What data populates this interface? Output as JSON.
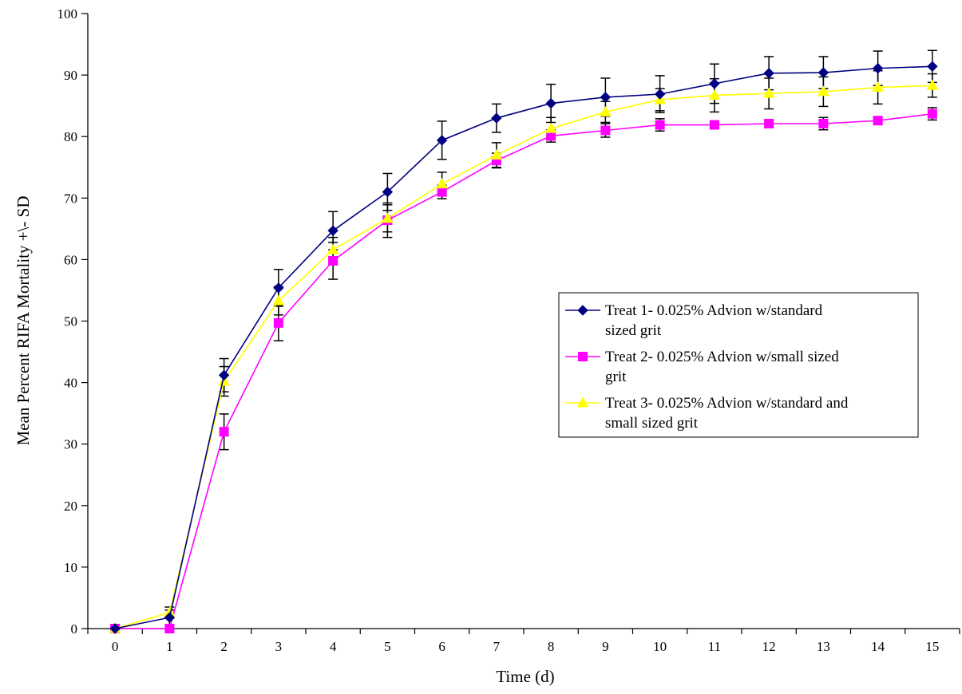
{
  "chart_data": {
    "type": "line",
    "title": "",
    "xlabel": "Time (d)",
    "ylabel": "Mean Percent RIFA Mortality +\\- SD",
    "x": [
      0,
      1,
      2,
      3,
      4,
      5,
      6,
      7,
      8,
      9,
      10,
      11,
      12,
      13,
      14,
      15
    ],
    "xlim": [
      0,
      15
    ],
    "ylim": [
      0,
      100
    ],
    "yticks": [
      0,
      10,
      20,
      30,
      40,
      50,
      60,
      70,
      80,
      90,
      100
    ],
    "grid": false,
    "legend_position": "right",
    "series": [
      {
        "name": "Treat 1- 0.025% Advion w/standard sized grit",
        "legend_lines": [
          "Treat 1- 0.025% Advion w/standard",
          "sized grit"
        ],
        "color": "#000080",
        "marker": "diamond",
        "values": [
          0,
          1.8,
          41.2,
          55.4,
          64.7,
          71.0,
          79.4,
          83.0,
          85.4,
          86.4,
          86.9,
          88.6,
          90.3,
          90.4,
          91.1,
          91.4
        ],
        "error": [
          0,
          1.2,
          2.7,
          3.0,
          3.1,
          3.0,
          3.1,
          2.3,
          3.1,
          3.1,
          3.0,
          3.2,
          2.7,
          2.6,
          2.8,
          2.6
        ]
      },
      {
        "name": "Treat 2- 0.025% Advion w/small sized grit",
        "legend_lines": [
          "Treat 2- 0.025% Advion w/small sized",
          "grit"
        ],
        "color": "#ff00ff",
        "marker": "square",
        "values": [
          0,
          0,
          32.0,
          49.7,
          59.8,
          66.4,
          71.0,
          76.1,
          80.1,
          81.0,
          81.9,
          81.9,
          82.1,
          82.1,
          82.6,
          83.7
        ],
        "error": [
          0,
          0,
          2.9,
          2.9,
          3.0,
          2.8,
          1.1,
          1.2,
          1.0,
          1.1,
          1.0,
          0.5,
          0.5,
          1.0,
          0.5,
          1.0
        ]
      },
      {
        "name": "Treat 3- 0.025% Advion w/standard and small sized grit",
        "legend_lines": [
          "Treat 3- 0.025% Advion w/standard and",
          "small sized grit"
        ],
        "color": "#ffff00",
        "marker": "triangle",
        "values": [
          0,
          2.6,
          40.2,
          53.3,
          61.6,
          66.7,
          72.3,
          77.0,
          81.3,
          84.0,
          86.0,
          86.7,
          87.0,
          87.3,
          88.0,
          88.3
        ],
        "error": [
          0,
          0.9,
          2.4,
          2.3,
          2.0,
          2.2,
          1.9,
          2.0,
          1.8,
          1.7,
          1.8,
          2.7,
          2.5,
          2.4,
          2.7,
          1.9
        ]
      }
    ]
  }
}
